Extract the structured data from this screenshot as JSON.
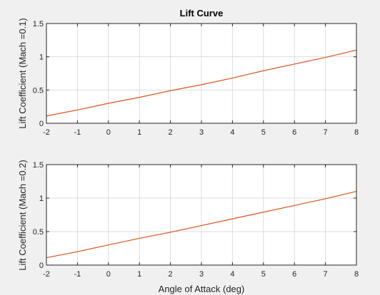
{
  "figure": {
    "background": "#f0f0f0",
    "axes_background": "#ffffff",
    "grid_color": "#dcdcdc",
    "axis_color": "#262626"
  },
  "chart_data": [
    {
      "type": "line",
      "title": "Lift Curve",
      "xlabel": "",
      "ylabel": "Lift Coefficient (Mach =0.1)",
      "xlim": [
        -2,
        8
      ],
      "ylim": [
        0,
        1.5
      ],
      "xticks": [
        "-2",
        "-1",
        "0",
        "1",
        "2",
        "3",
        "4",
        "5",
        "6",
        "7",
        "8"
      ],
      "yticks": [
        "0",
        "0.5",
        "1",
        "1.5"
      ],
      "grid": true,
      "series": [
        {
          "color": "#d95319",
          "x": [
            -2,
            -1,
            0,
            1,
            2,
            3,
            4,
            5,
            6,
            7,
            8
          ],
          "y": [
            0.11,
            0.2,
            0.3,
            0.39,
            0.49,
            0.58,
            0.68,
            0.79,
            0.89,
            0.99,
            1.1
          ]
        }
      ]
    },
    {
      "type": "line",
      "title": "",
      "xlabel": "Angle of Attack (deg)",
      "ylabel": "Lift Coefficient (Mach =0.2)",
      "xlim": [
        -2,
        8
      ],
      "ylim": [
        0,
        1.5
      ],
      "xticks": [
        "-2",
        "-1",
        "0",
        "1",
        "2",
        "3",
        "4",
        "5",
        "6",
        "7",
        "8"
      ],
      "yticks": [
        "0",
        "0.5",
        "1",
        "1.5"
      ],
      "grid": true,
      "series": [
        {
          "color": "#d95319",
          "x": [
            -2,
            -1,
            0,
            1,
            2,
            3,
            4,
            5,
            6,
            7,
            8
          ],
          "y": [
            0.11,
            0.2,
            0.3,
            0.4,
            0.49,
            0.59,
            0.69,
            0.79,
            0.89,
            0.99,
            1.1
          ]
        }
      ]
    }
  ]
}
